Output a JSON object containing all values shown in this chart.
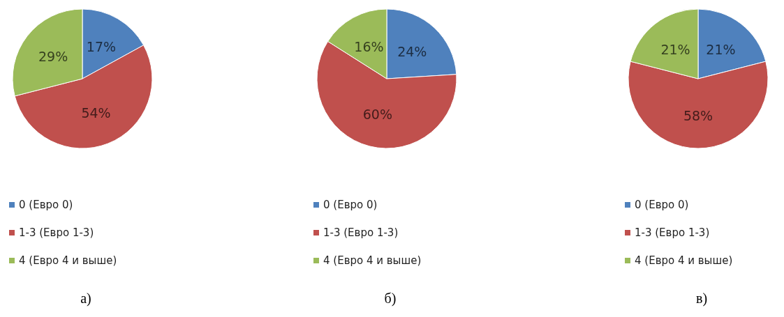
{
  "chart_data": [
    {
      "type": "pie",
      "title": "а)",
      "categories": [
        "0 (Евро 0)",
        "1-3 (Евро 1-3)",
        "4 (Евро 4 и выше)"
      ],
      "values": [
        17,
        54,
        29
      ],
      "colors": [
        "#4f81bd",
        "#c0504d",
        "#9bbb59"
      ],
      "value_labels": [
        "17%",
        "54%",
        "29%"
      ],
      "legend": "bottom"
    },
    {
      "type": "pie",
      "title": "б)",
      "categories": [
        "0 (Евро 0)",
        "1-3 (Евро 1-3)",
        "4 (Евро 4 и выше)"
      ],
      "values": [
        24,
        60,
        16
      ],
      "colors": [
        "#4f81bd",
        "#c0504d",
        "#9bbb59"
      ],
      "value_labels": [
        "24%",
        "60%",
        "16%"
      ],
      "legend": "bottom"
    },
    {
      "type": "pie",
      "title": "в)",
      "categories": [
        "0 (Евро 0)",
        "1-3 (Евро 1-3)",
        "4 (Евро 4 и выше)"
      ],
      "values": [
        21,
        58,
        21
      ],
      "colors": [
        "#4f81bd",
        "#c0504d",
        "#9bbb59"
      ],
      "value_labels": [
        "21%",
        "58%",
        "21%"
      ],
      "legend": "bottom"
    }
  ]
}
